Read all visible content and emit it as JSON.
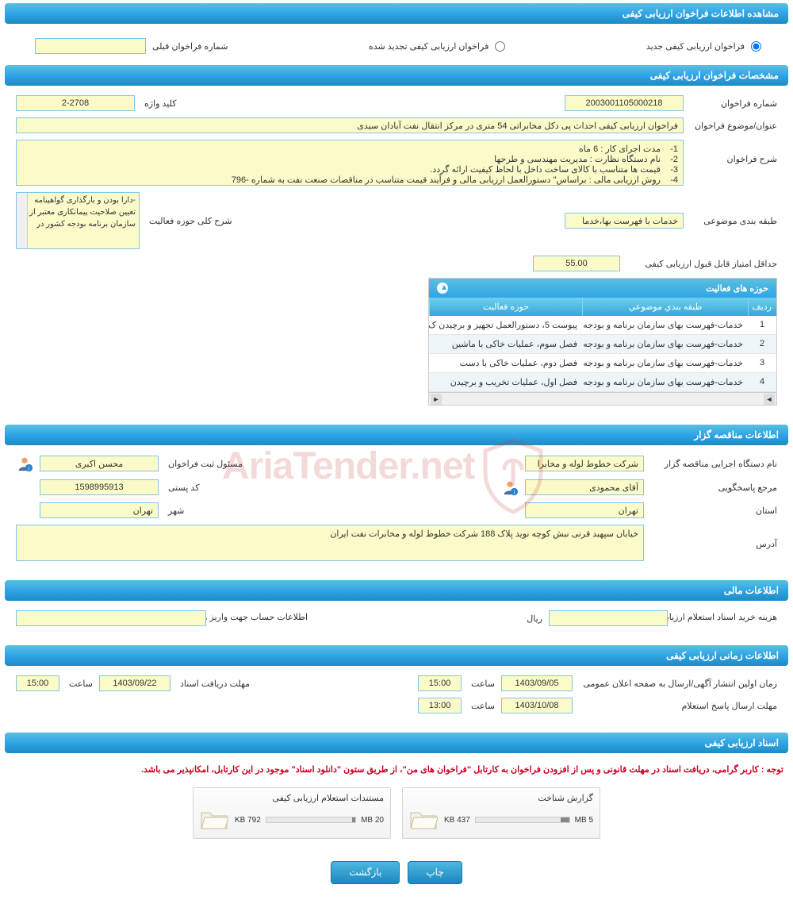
{
  "colors": {
    "header_gradient_top": "#5bc0de",
    "header_gradient_bottom": "#1e8bc3",
    "input_bg": "#fbfbc9",
    "input_border": "#7fc5e6",
    "notice": "#cc0020",
    "btn_top": "#4db8e0",
    "btn_bottom": "#1c87c0"
  },
  "sections": {
    "s1_title": "مشاهده اطلاعات فراخوان ارزیابی کیفی",
    "s2_title": "مشخصات فراخوان ارزیابی کیفی",
    "s3_title": "اطلاعات مناقصه گزار",
    "s4_title": "اطلاعات مالی",
    "s5_title": "اطلاعات زمانی ارزیابی کیفی",
    "s6_title": "اسناد ارزیابی کیفی"
  },
  "radio": {
    "opt_new": "فراخوان ارزیابی کیفی جدید",
    "opt_renewed": "فراخوان ارزیابی کیفی تجدید شده",
    "prev_number_label": "شماره فراخوان قبلی",
    "prev_number_value": ""
  },
  "spec": {
    "call_number_label": "شماره فراخوان",
    "call_number_value": "2003001105000218",
    "keyword_label": "کلید واژه",
    "keyword_value": "2-2708",
    "subject_label": "عنوان/موضوع فراخوان",
    "subject_value": "فراخوان ارزیابی کیفی احداث پی دکل مخابراتی 54 متری در مرکز انتقال نفت آبادان سیدی",
    "desc_label": "شرح فراخوان",
    "desc_value": "1-    مدت اجرای کار : 6 ماه\n2-    نام دستگاه نظارت : مدیریت مهندسی و طرحها\n3-    قیمت ها متناسب با کالای ساخت داخل با لحاظ کیفیت ارائه گردد.\n4-    روش ارزیابی مالی : براساس\" دستورالعمل ارزیابی مالی و فرآیند قیمت متناسب در مناقصات صنعت نفت به شماره -796",
    "category_label": "طبقه بندی موضوعی",
    "category_value": "خدمات با فهرست بها،خدما",
    "scope_label": "شرح کلی حوزه فعالیت",
    "scope_list": "-دارا بودن و بارگذاری گواهینامه تعیین صلاحیت پیمانکاری معتبر از سازمان برنامه بودجه کشور در",
    "min_score_label": "حداقل امتیاز قابل قبول ارزیابی کیفی",
    "min_score_value": "55.00"
  },
  "activity": {
    "title": "حوزه های فعالیت",
    "col_idx": "ردیف",
    "col_cat": "طبقه بندي موضوعي",
    "col_act": "حوزه فعاليت",
    "rows": [
      {
        "idx": "1",
        "cat": "خدمات-فهرست بهای سازمان برنامه و بودجه",
        "act": "پیوست 5، دستورالعمل تجهیز و برچیدن ک"
      },
      {
        "idx": "2",
        "cat": "خدمات-فهرست بهای سازمان برنامه و بودجه",
        "act": "فصل سوم، عملیات خاکی با ماشین"
      },
      {
        "idx": "3",
        "cat": "خدمات-فهرست بهای سازمان برنامه و بودجه",
        "act": "فصل دوم، عملیات خاکی با دست"
      },
      {
        "idx": "4",
        "cat": "خدمات-فهرست بهای سازمان برنامه و بودجه",
        "act": "فصل اول، عملیات تخریب و برچیدن"
      }
    ]
  },
  "organizer": {
    "org_label": "نام دستگاه اجرایی مناقصه گزار",
    "org_value": "شرکت خطوط لوله و مخابرا",
    "registrar_label": "مسئول ثبت فراخوان",
    "registrar_value": "محسن اکبری",
    "responder_label": "مرجع پاسخگویی",
    "responder_value": "آقای محمودی",
    "postal_label": "کد پستی",
    "postal_value": "1598995913",
    "province_label": "استان",
    "province_value": "تهران",
    "city_label": "شهر",
    "city_value": "تهران",
    "address_label": "آدرس",
    "address_value": "خیابان سپهبد قرنی نبش کوچه نوید پلاک 188 شرکت خطوط لوله و مخابرات نفت ایران"
  },
  "financial": {
    "cost_label": "هزینه خرید اسناد استعلام ارزیابی کیفی",
    "cost_value": "",
    "currency": "ریال",
    "account_label": "اطلاعات حساب جهت واریز هزینه خرید اسناد",
    "account_value": ""
  },
  "timing": {
    "publish_label": "زمان اولین انتشار آگهی/ارسال به صفحه اعلان عمومی",
    "publish_date": "1403/09/05",
    "publish_time_label": "ساعت",
    "publish_time": "15:00",
    "receive_label": "مهلت دریافت اسناد",
    "receive_date": "1403/09/22",
    "receive_time_label": "ساعت",
    "receive_time": "15:00",
    "respond_label": "مهلت ارسال پاسخ استعلام",
    "respond_date": "1403/10/08",
    "respond_time_label": "ساعت",
    "respond_time": "13:00"
  },
  "docs": {
    "notice": "توجه : کاربر گرامی، دریافت اسناد در مهلت قانونی و پس از افزودن فراخوان به کارتابل \"فراخوان های من\"، از طریق ستون \"دانلود اسناد\" موجود در این کارتابل، امکانپذیر می باشد.",
    "file1_title": "گزارش شناخت",
    "file1_size": "437 KB",
    "file1_cap": "5 MB",
    "file1_pct": 9,
    "file2_title": "مستندات استعلام ارزیابی کیفی",
    "file2_size": "792 KB",
    "file2_cap": "20 MB",
    "file2_pct": 4
  },
  "buttons": {
    "print": "چاپ",
    "back": "بازگشت"
  },
  "watermark": {
    "text": "AriaTender.net"
  }
}
